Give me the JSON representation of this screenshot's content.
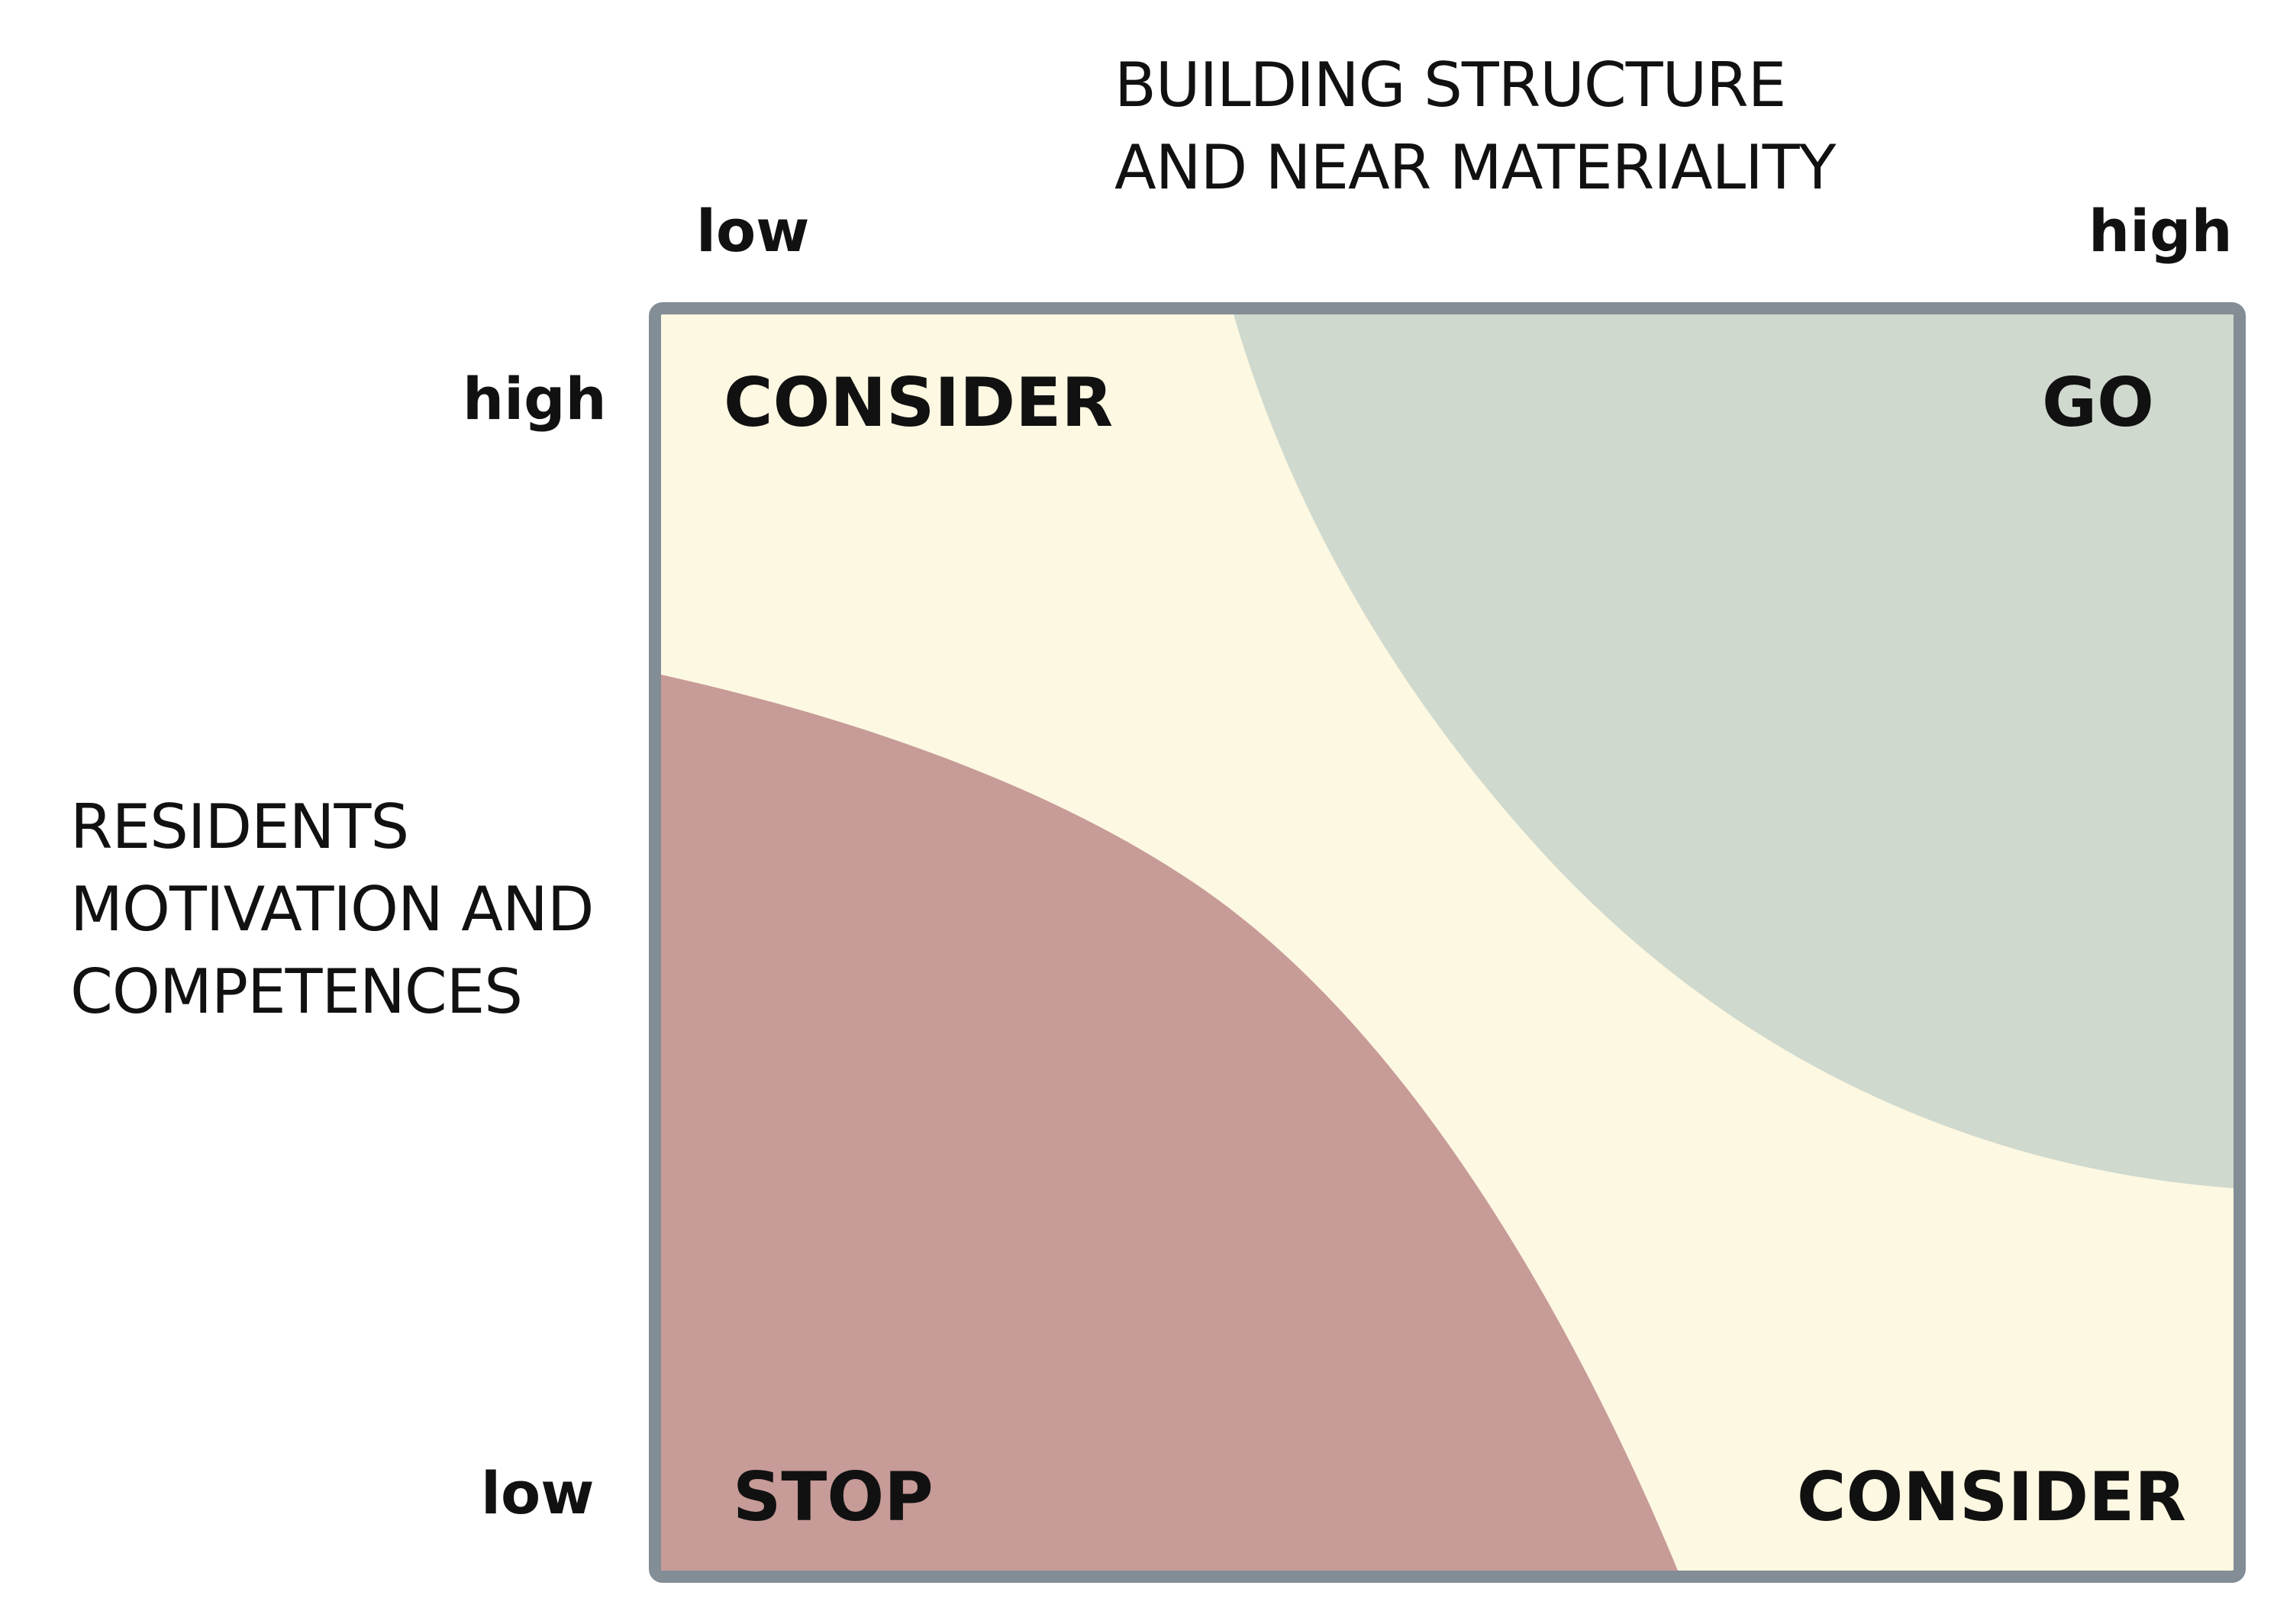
{
  "x_axis": {
    "title_lines": [
      "BUILDING STRUCTURE",
      "AND NEAR MATERIALITY"
    ],
    "low_label": "low",
    "high_label": "high"
  },
  "y_axis": {
    "title_lines": [
      "RESIDENTS",
      "MOTIVATION AND",
      "COMPETENCES"
    ],
    "high_label": "high",
    "low_label": "low"
  },
  "zones": {
    "top_left": "CONSIDER",
    "top_right": "GO",
    "bottom_left": "STOP",
    "bottom_right": "CONSIDER"
  },
  "colors": {
    "consider": "#fdf8e1",
    "go": "#d0d9ce",
    "stop": "#c79b98",
    "frame": "#838d95",
    "text": "#111111"
  }
}
